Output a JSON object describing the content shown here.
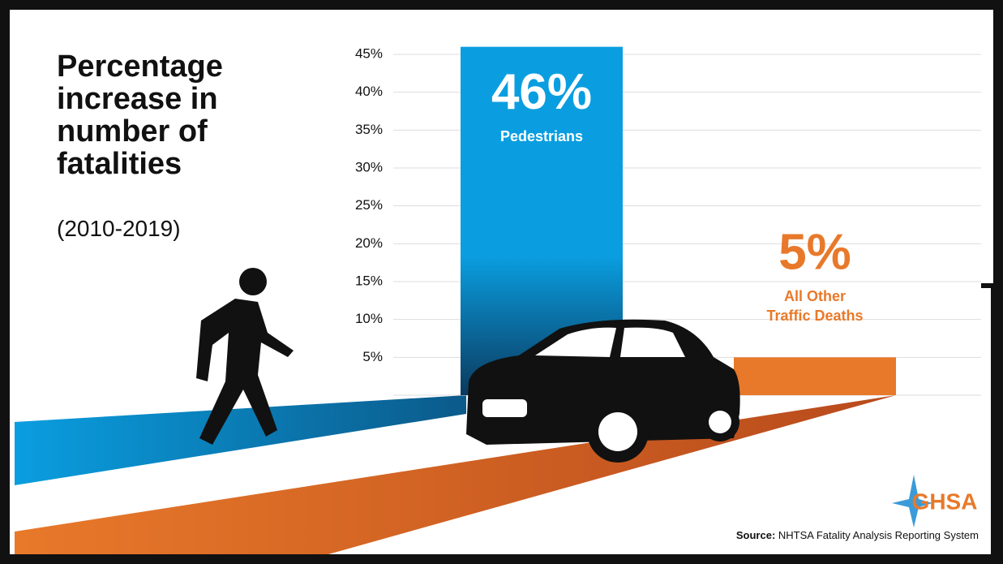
{
  "chart_data": {
    "type": "bar",
    "title": "Percentage increase in number of fatalities",
    "subtitle": "(2010-2019)",
    "categories": [
      "Pedestrians",
      "All Other Traffic Deaths"
    ],
    "values": [
      46,
      5
    ],
    "value_labels": [
      "46%",
      "5%"
    ],
    "colors": [
      "#0a9ee0",
      "#e8792a"
    ],
    "ylim": [
      0,
      45
    ],
    "yticks": [
      {
        "value": 5,
        "label": "5%"
      },
      {
        "value": 10,
        "label": "10%"
      },
      {
        "value": 15,
        "label": "15%"
      },
      {
        "value": 20,
        "label": "20%"
      },
      {
        "value": 25,
        "label": "25%"
      },
      {
        "value": 30,
        "label": "30%"
      },
      {
        "value": 35,
        "label": "35%"
      },
      {
        "value": 40,
        "label": "40%"
      },
      {
        "value": 45,
        "label": "45%"
      }
    ],
    "grid": true,
    "source_label": "Source:",
    "source": "NHTSA Fatality Analysis Reporting System",
    "logo": "GHSA"
  }
}
